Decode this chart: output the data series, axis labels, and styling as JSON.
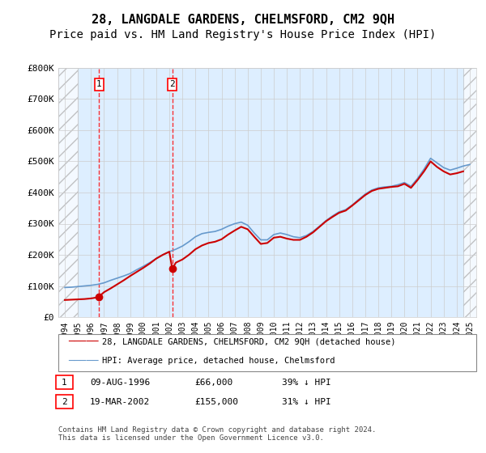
{
  "title": "28, LANGDALE GARDENS, CHELMSFORD, CM2 9QH",
  "subtitle": "Price paid vs. HM Land Registry's House Price Index (HPI)",
  "title_fontsize": 11,
  "subtitle_fontsize": 10,
  "ylabel": "",
  "ylim": [
    0,
    800000
  ],
  "yticks": [
    0,
    100000,
    200000,
    300000,
    400000,
    500000,
    600000,
    700000,
    800000
  ],
  "ytick_labels": [
    "£0",
    "£100K",
    "£200K",
    "£300K",
    "£400K",
    "£500K",
    "£600K",
    "£700K",
    "£800K"
  ],
  "xlim_start": 1993.5,
  "xlim_end": 2025.5,
  "hpi_color": "#6699cc",
  "price_color": "#cc0000",
  "hatch_color": "#cccccc",
  "grid_color": "#cccccc",
  "transaction1_date": 1996.61,
  "transaction1_price": 66000,
  "transaction2_date": 2002.22,
  "transaction2_price": 155000,
  "legend_label1": "28, LANGDALE GARDENS, CHELMSFORD, CM2 9QH (detached house)",
  "legend_label2": "HPI: Average price, detached house, Chelmsford",
  "table_rows": [
    {
      "num": "1",
      "date": "09-AUG-1996",
      "price": "£66,000",
      "hpi": "39% ↓ HPI"
    },
    {
      "num": "2",
      "date": "19-MAR-2002",
      "price": "£155,000",
      "hpi": "31% ↓ HPI"
    }
  ],
  "footer": "Contains HM Land Registry data © Crown copyright and database right 2024.\nThis data is licensed under the Open Government Licence v3.0.",
  "hpi_data_x": [
    1994,
    1994.5,
    1995,
    1995.5,
    1996,
    1996.5,
    1997,
    1997.5,
    1998,
    1998.5,
    1999,
    1999.5,
    2000,
    2000.5,
    2001,
    2001.5,
    2002,
    2002.5,
    2003,
    2003.5,
    2004,
    2004.5,
    2005,
    2005.5,
    2006,
    2006.5,
    2007,
    2007.5,
    2008,
    2008.5,
    2009,
    2009.5,
    2010,
    2010.5,
    2011,
    2011.5,
    2012,
    2012.5,
    2013,
    2013.5,
    2014,
    2014.5,
    2015,
    2015.5,
    2016,
    2016.5,
    2017,
    2017.5,
    2018,
    2018.5,
    2019,
    2019.5,
    2020,
    2020.5,
    2021,
    2021.5,
    2022,
    2022.5,
    2023,
    2023.5,
    2024,
    2024.5,
    2025
  ],
  "hpi_data_y": [
    95000,
    96000,
    98000,
    100000,
    102000,
    105000,
    110000,
    118000,
    125000,
    132000,
    140000,
    152000,
    163000,
    175000,
    188000,
    200000,
    210000,
    218000,
    228000,
    242000,
    258000,
    268000,
    272000,
    275000,
    282000,
    292000,
    300000,
    305000,
    295000,
    270000,
    248000,
    248000,
    265000,
    270000,
    265000,
    258000,
    255000,
    262000,
    275000,
    292000,
    310000,
    325000,
    338000,
    345000,
    360000,
    378000,
    395000,
    408000,
    415000,
    418000,
    420000,
    425000,
    432000,
    420000,
    445000,
    475000,
    510000,
    495000,
    480000,
    472000,
    478000,
    485000,
    490000
  ],
  "price_data_x": [
    1994,
    1994.5,
    1995,
    1995.5,
    1996,
    1996.3,
    1996.61,
    1997,
    1997.5,
    1998,
    1998.5,
    1999,
    1999.5,
    2000,
    2000.5,
    2001,
    2001.5,
    2002,
    2002.22,
    2002.5,
    2003,
    2003.5,
    2004,
    2004.5,
    2005,
    2005.5,
    2006,
    2006.5,
    2007,
    2007.5,
    2008,
    2008.5,
    2009,
    2009.5,
    2010,
    2010.5,
    2011,
    2011.5,
    2012,
    2012.5,
    2013,
    2013.5,
    2014,
    2014.5,
    2015,
    2015.5,
    2016,
    2016.5,
    2017,
    2017.5,
    2018,
    2018.5,
    2019,
    2019.5,
    2020,
    2020.5,
    2021,
    2021.5,
    2022,
    2022.5,
    2023,
    2023.5,
    2024,
    2024.5
  ],
  "price_data_y": [
    55000,
    56000,
    57000,
    58000,
    60000,
    62000,
    66000,
    80000,
    92000,
    105000,
    118000,
    132000,
    145000,
    158000,
    172000,
    188000,
    200000,
    210000,
    155000,
    175000,
    185000,
    200000,
    218000,
    230000,
    238000,
    242000,
    250000,
    265000,
    278000,
    290000,
    282000,
    258000,
    235000,
    238000,
    255000,
    258000,
    252000,
    248000,
    248000,
    258000,
    272000,
    290000,
    308000,
    322000,
    335000,
    342000,
    358000,
    375000,
    392000,
    405000,
    412000,
    415000,
    418000,
    420000,
    428000,
    415000,
    440000,
    468000,
    500000,
    482000,
    468000,
    458000,
    462000,
    468000
  ]
}
